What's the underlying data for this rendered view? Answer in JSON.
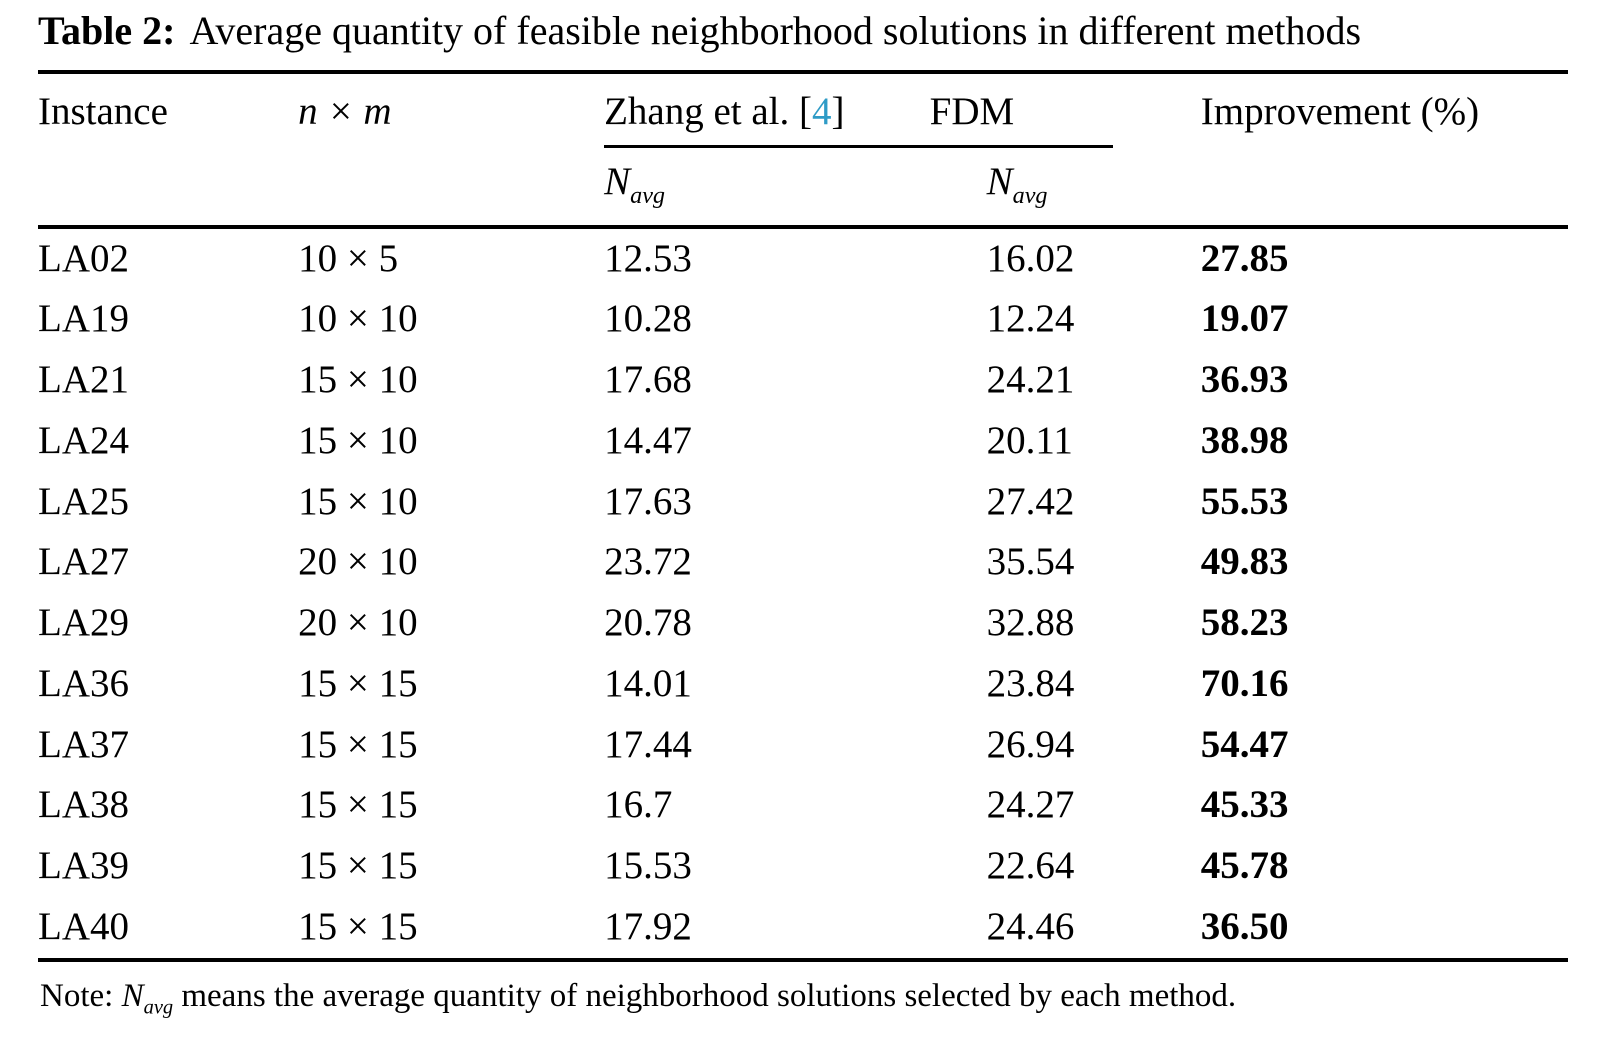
{
  "title": {
    "label": "Table 2:",
    "text": "Average quantity of feasible neighborhood solutions in different methods"
  },
  "table": {
    "headers": {
      "instance": "Instance",
      "nxm": "n × m",
      "method1_pre": "Zhang et al. [",
      "method1_cite": "4",
      "method1_post": "]",
      "method2": "FDM",
      "navg_base": "N",
      "navg_sub": "avg",
      "improvement": "Improvement (%)"
    },
    "rows": [
      {
        "instance": "LA02",
        "nxm": "10 × 5",
        "zhang": "12.53",
        "fdm": "16.02",
        "improvement": "27.85"
      },
      {
        "instance": "LA19",
        "nxm": "10 × 10",
        "zhang": "10.28",
        "fdm": "12.24",
        "improvement": "19.07"
      },
      {
        "instance": "LA21",
        "nxm": "15 × 10",
        "zhang": "17.68",
        "fdm": "24.21",
        "improvement": "36.93"
      },
      {
        "instance": "LA24",
        "nxm": "15 × 10",
        "zhang": "14.47",
        "fdm": "20.11",
        "improvement": "38.98"
      },
      {
        "instance": "LA25",
        "nxm": "15 × 10",
        "zhang": "17.63",
        "fdm": "27.42",
        "improvement": "55.53"
      },
      {
        "instance": "LA27",
        "nxm": "20 × 10",
        "zhang": "23.72",
        "fdm": "35.54",
        "improvement": "49.83"
      },
      {
        "instance": "LA29",
        "nxm": "20 × 10",
        "zhang": "20.78",
        "fdm": "32.88",
        "improvement": "58.23"
      },
      {
        "instance": "LA36",
        "nxm": "15 × 15",
        "zhang": "14.01",
        "fdm": "23.84",
        "improvement": "70.16"
      },
      {
        "instance": "LA37",
        "nxm": "15 × 15",
        "zhang": "17.44",
        "fdm": "26.94",
        "improvement": "54.47"
      },
      {
        "instance": "LA38",
        "nxm": "15 × 15",
        "zhang": "16.7",
        "fdm": "24.27",
        "improvement": "45.33"
      },
      {
        "instance": "LA39",
        "nxm": "15 × 15",
        "zhang": "15.53",
        "fdm": "22.64",
        "improvement": "45.78"
      },
      {
        "instance": "LA40",
        "nxm": "15 × 15",
        "zhang": "17.92",
        "fdm": "24.46",
        "improvement": "36.50"
      }
    ]
  },
  "note": {
    "prefix": "Note: ",
    "navg_base": "N",
    "navg_sub": "avg",
    "text": " means the average quantity of neighborhood solutions selected by each method."
  },
  "colors": {
    "citation": "#2e9bc6"
  }
}
